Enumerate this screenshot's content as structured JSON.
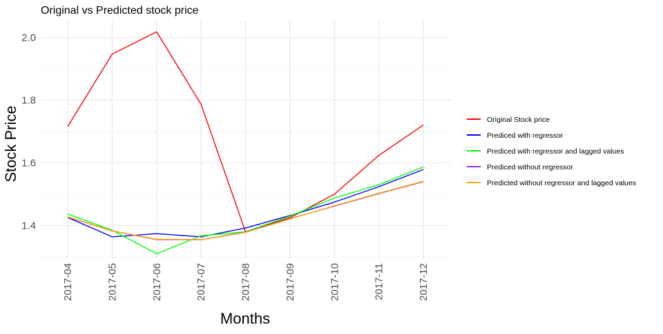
{
  "chart_data": {
    "type": "line",
    "title": "Original vs Predicted stock price",
    "xlabel": "Months",
    "ylabel": "Stock Price",
    "categories": [
      "2017-04",
      "2017-05",
      "2017-06",
      "2017-07",
      "2017-08",
      "2017-09",
      "2017-10",
      "2017-11",
      "2017-12"
    ],
    "yticks": [
      1.4,
      1.6,
      1.8,
      2.0
    ],
    "ytick_labels": [
      "1.4",
      "1.6",
      "1.8",
      "2.0"
    ],
    "ylim": [
      1.29,
      2.05
    ],
    "grid": true,
    "legend_position": "right",
    "series": [
      {
        "name": "Original Stock price",
        "color": "#ff0000",
        "values": [
          1.716,
          1.947,
          2.018,
          1.787,
          1.38,
          1.425,
          1.5,
          1.624,
          1.721
        ]
      },
      {
        "name": "Prediced with regressor",
        "color": "#0000ff",
        "values": [
          1.426,
          1.364,
          1.374,
          1.364,
          1.392,
          1.432,
          1.475,
          1.524,
          1.579
        ]
      },
      {
        "name": "Prediced with regressor and lagged values",
        "color": "#00ff00",
        "values": [
          1.437,
          1.385,
          1.31,
          1.367,
          1.38,
          1.43,
          1.488,
          1.53,
          1.587
        ]
      },
      {
        "name": "Prediced without regressor",
        "color": "#a020f0",
        "values": [
          1.427,
          1.383,
          1.355,
          1.355,
          1.379,
          1.422,
          1.462,
          1.502,
          1.54
        ]
      },
      {
        "name": "Predicted without regressor and lagged values",
        "color": "#ffa500",
        "values": [
          1.428,
          1.383,
          1.356,
          1.355,
          1.378,
          1.421,
          1.463,
          1.503,
          1.541
        ]
      }
    ]
  }
}
